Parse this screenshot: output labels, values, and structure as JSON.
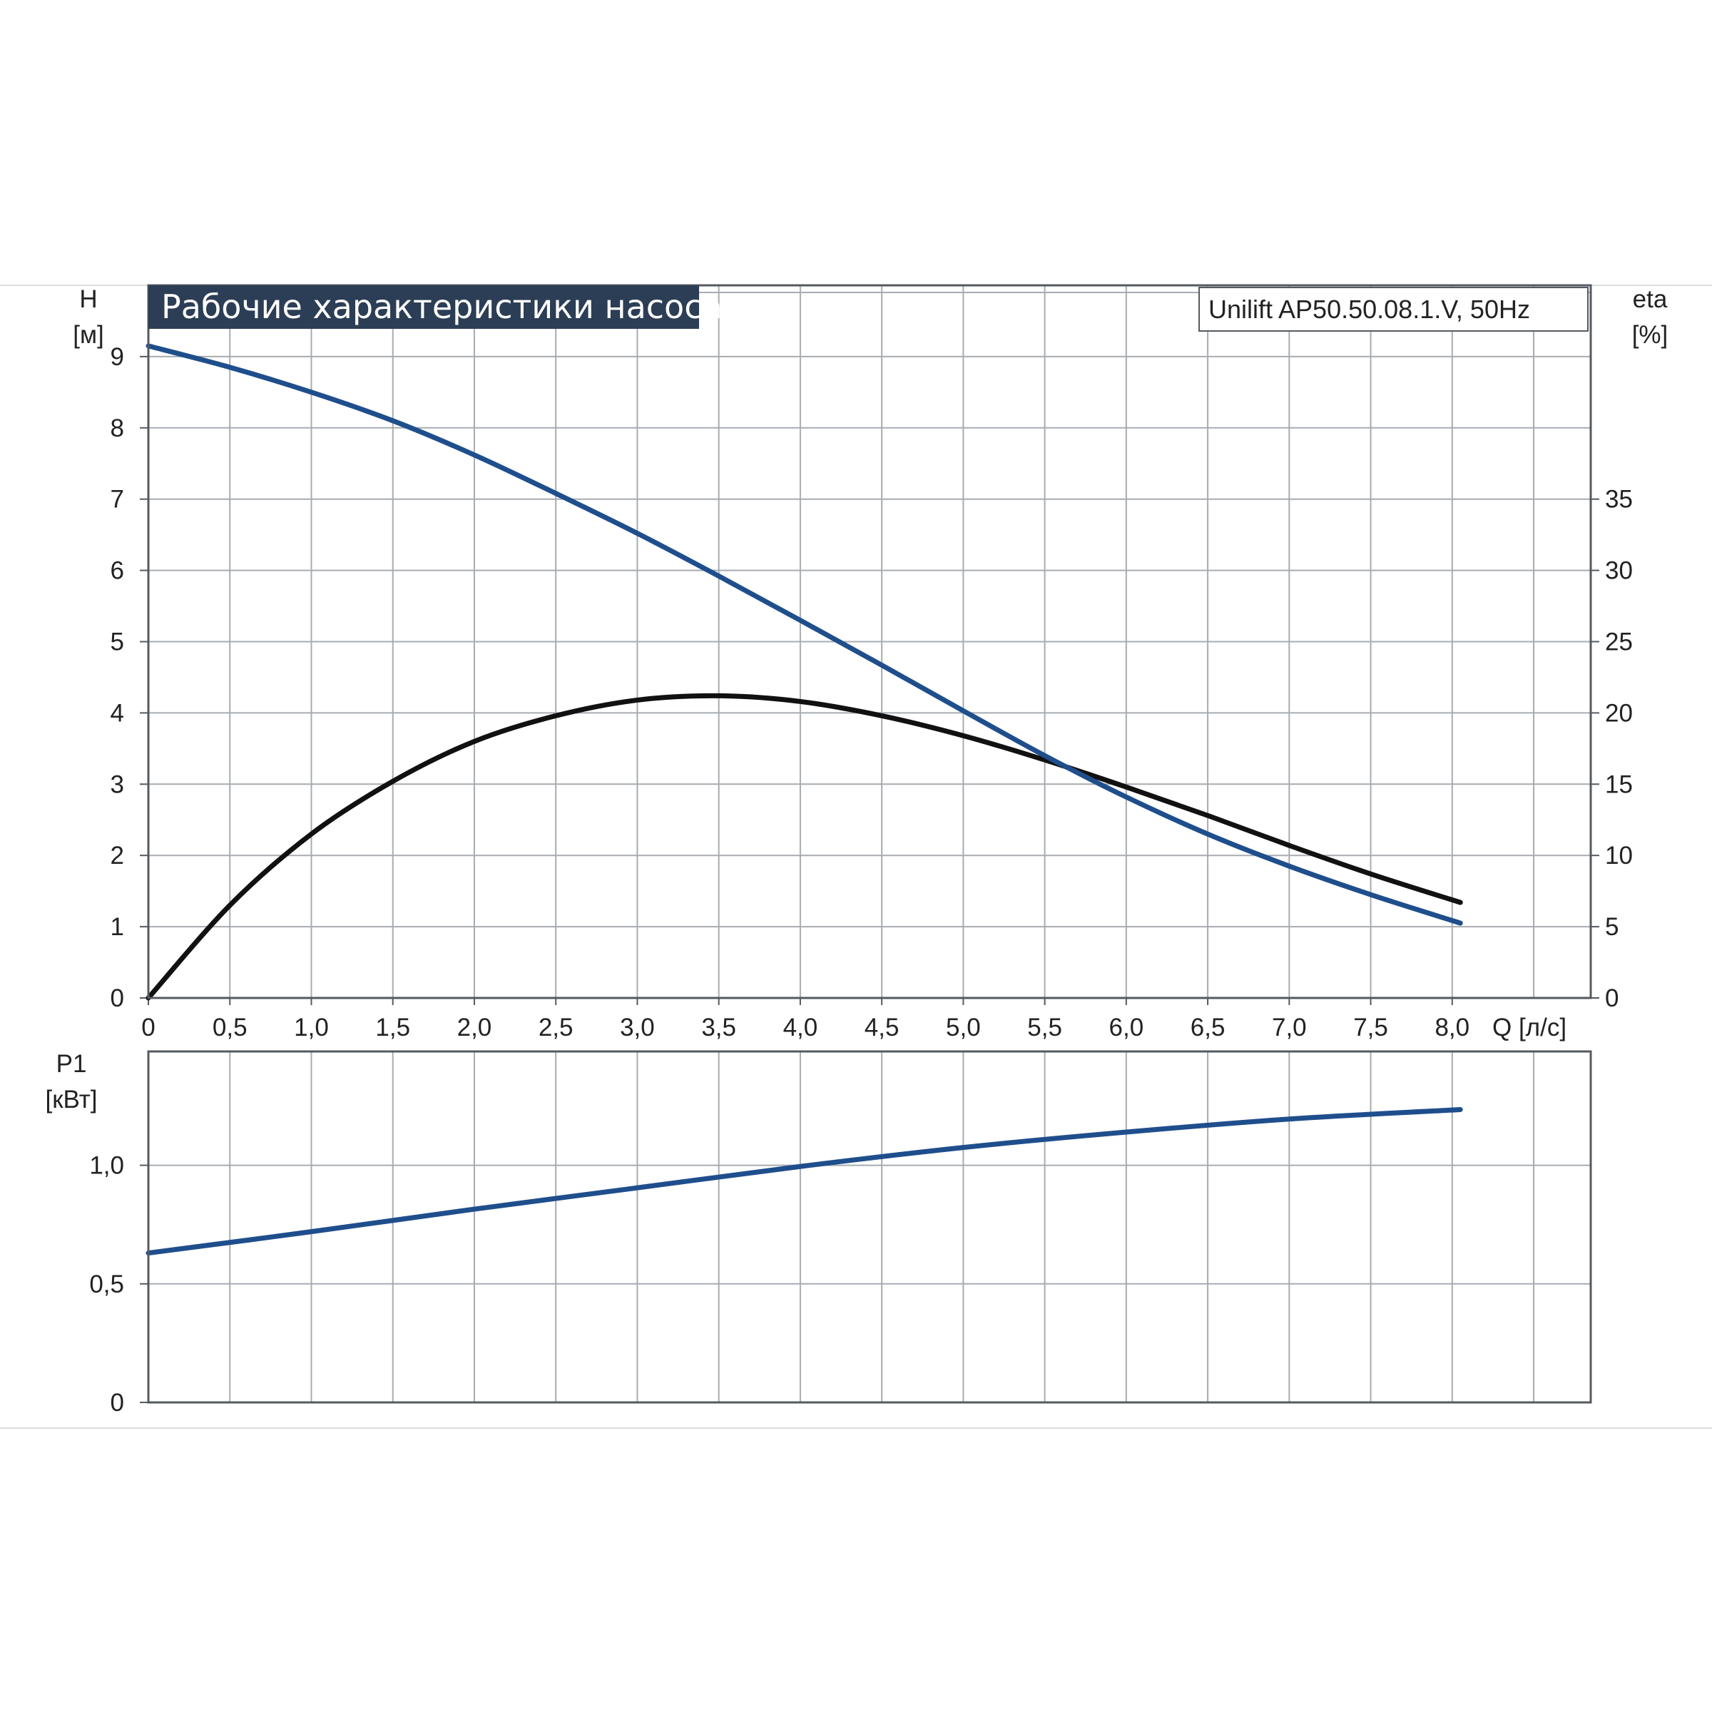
{
  "chart_data": [
    {
      "type": "line",
      "title": "Рабочие характеристики насоса",
      "model_label": "Unilift AP50.50.08.1.V, 50Hz",
      "xlabel": "Q [л/с]",
      "x_ticks": [
        "0",
        "0,5",
        "1,0",
        "1,5",
        "2,0",
        "2,5",
        "3,0",
        "3,5",
        "4,0",
        "4,5",
        "5,0",
        "5,5",
        "6,0",
        "6,5",
        "7,0",
        "7,5",
        "8,0"
      ],
      "xlim": [
        0,
        8.85
      ],
      "ylabel": "H",
      "ylabel_unit": "[м]",
      "y_ticks": [
        "0",
        "1",
        "2",
        "3",
        "4",
        "5",
        "6",
        "7",
        "8",
        "9"
      ],
      "ylim": [
        0,
        10
      ],
      "y2label": "eta",
      "y2label_unit": "[%]",
      "y2_ticks": [
        "0",
        "5",
        "10",
        "15",
        "20",
        "25",
        "30",
        "35"
      ],
      "y2lim": [
        0,
        50
      ],
      "grid": true,
      "series": [
        {
          "axis": "left",
          "color": "#1f4e8c",
          "x": [
            0,
            0.5,
            1.0,
            1.5,
            2.0,
            2.5,
            3.0,
            3.5,
            4.0,
            4.5,
            5.0,
            5.5,
            6.0,
            6.5,
            7.0,
            7.5,
            8.05
          ],
          "y": [
            9.15,
            8.85,
            8.5,
            8.1,
            7.62,
            7.08,
            6.52,
            5.92,
            5.3,
            4.67,
            4.03,
            3.4,
            2.82,
            2.3,
            1.85,
            1.45,
            1.05
          ]
        },
        {
          "axis": "right",
          "color": "#111111",
          "x": [
            0,
            0.5,
            1.0,
            1.5,
            2.0,
            2.5,
            3.0,
            3.5,
            4.0,
            4.5,
            5.0,
            5.5,
            6.0,
            6.5,
            7.0,
            7.5,
            8.05
          ],
          "y": [
            0,
            6.5,
            11.5,
            15.2,
            18.0,
            19.8,
            20.9,
            21.2,
            20.8,
            19.8,
            18.4,
            16.7,
            14.8,
            12.8,
            10.7,
            8.7,
            6.7
          ]
        }
      ]
    },
    {
      "type": "line",
      "ylabel": "P1",
      "ylabel_unit": "[кВт]",
      "y_ticks": [
        "0",
        "0,5",
        "1,0"
      ],
      "ylim": [
        0,
        1.48
      ],
      "xlim": [
        0,
        8.85
      ],
      "grid": true,
      "series": [
        {
          "color": "#1f4e8c",
          "x": [
            0,
            1.0,
            2.0,
            3.0,
            4.0,
            5.0,
            6.0,
            7.0,
            8.05
          ],
          "y": [
            0.63,
            0.72,
            0.815,
            0.905,
            0.995,
            1.075,
            1.14,
            1.195,
            1.235
          ]
        }
      ]
    }
  ]
}
